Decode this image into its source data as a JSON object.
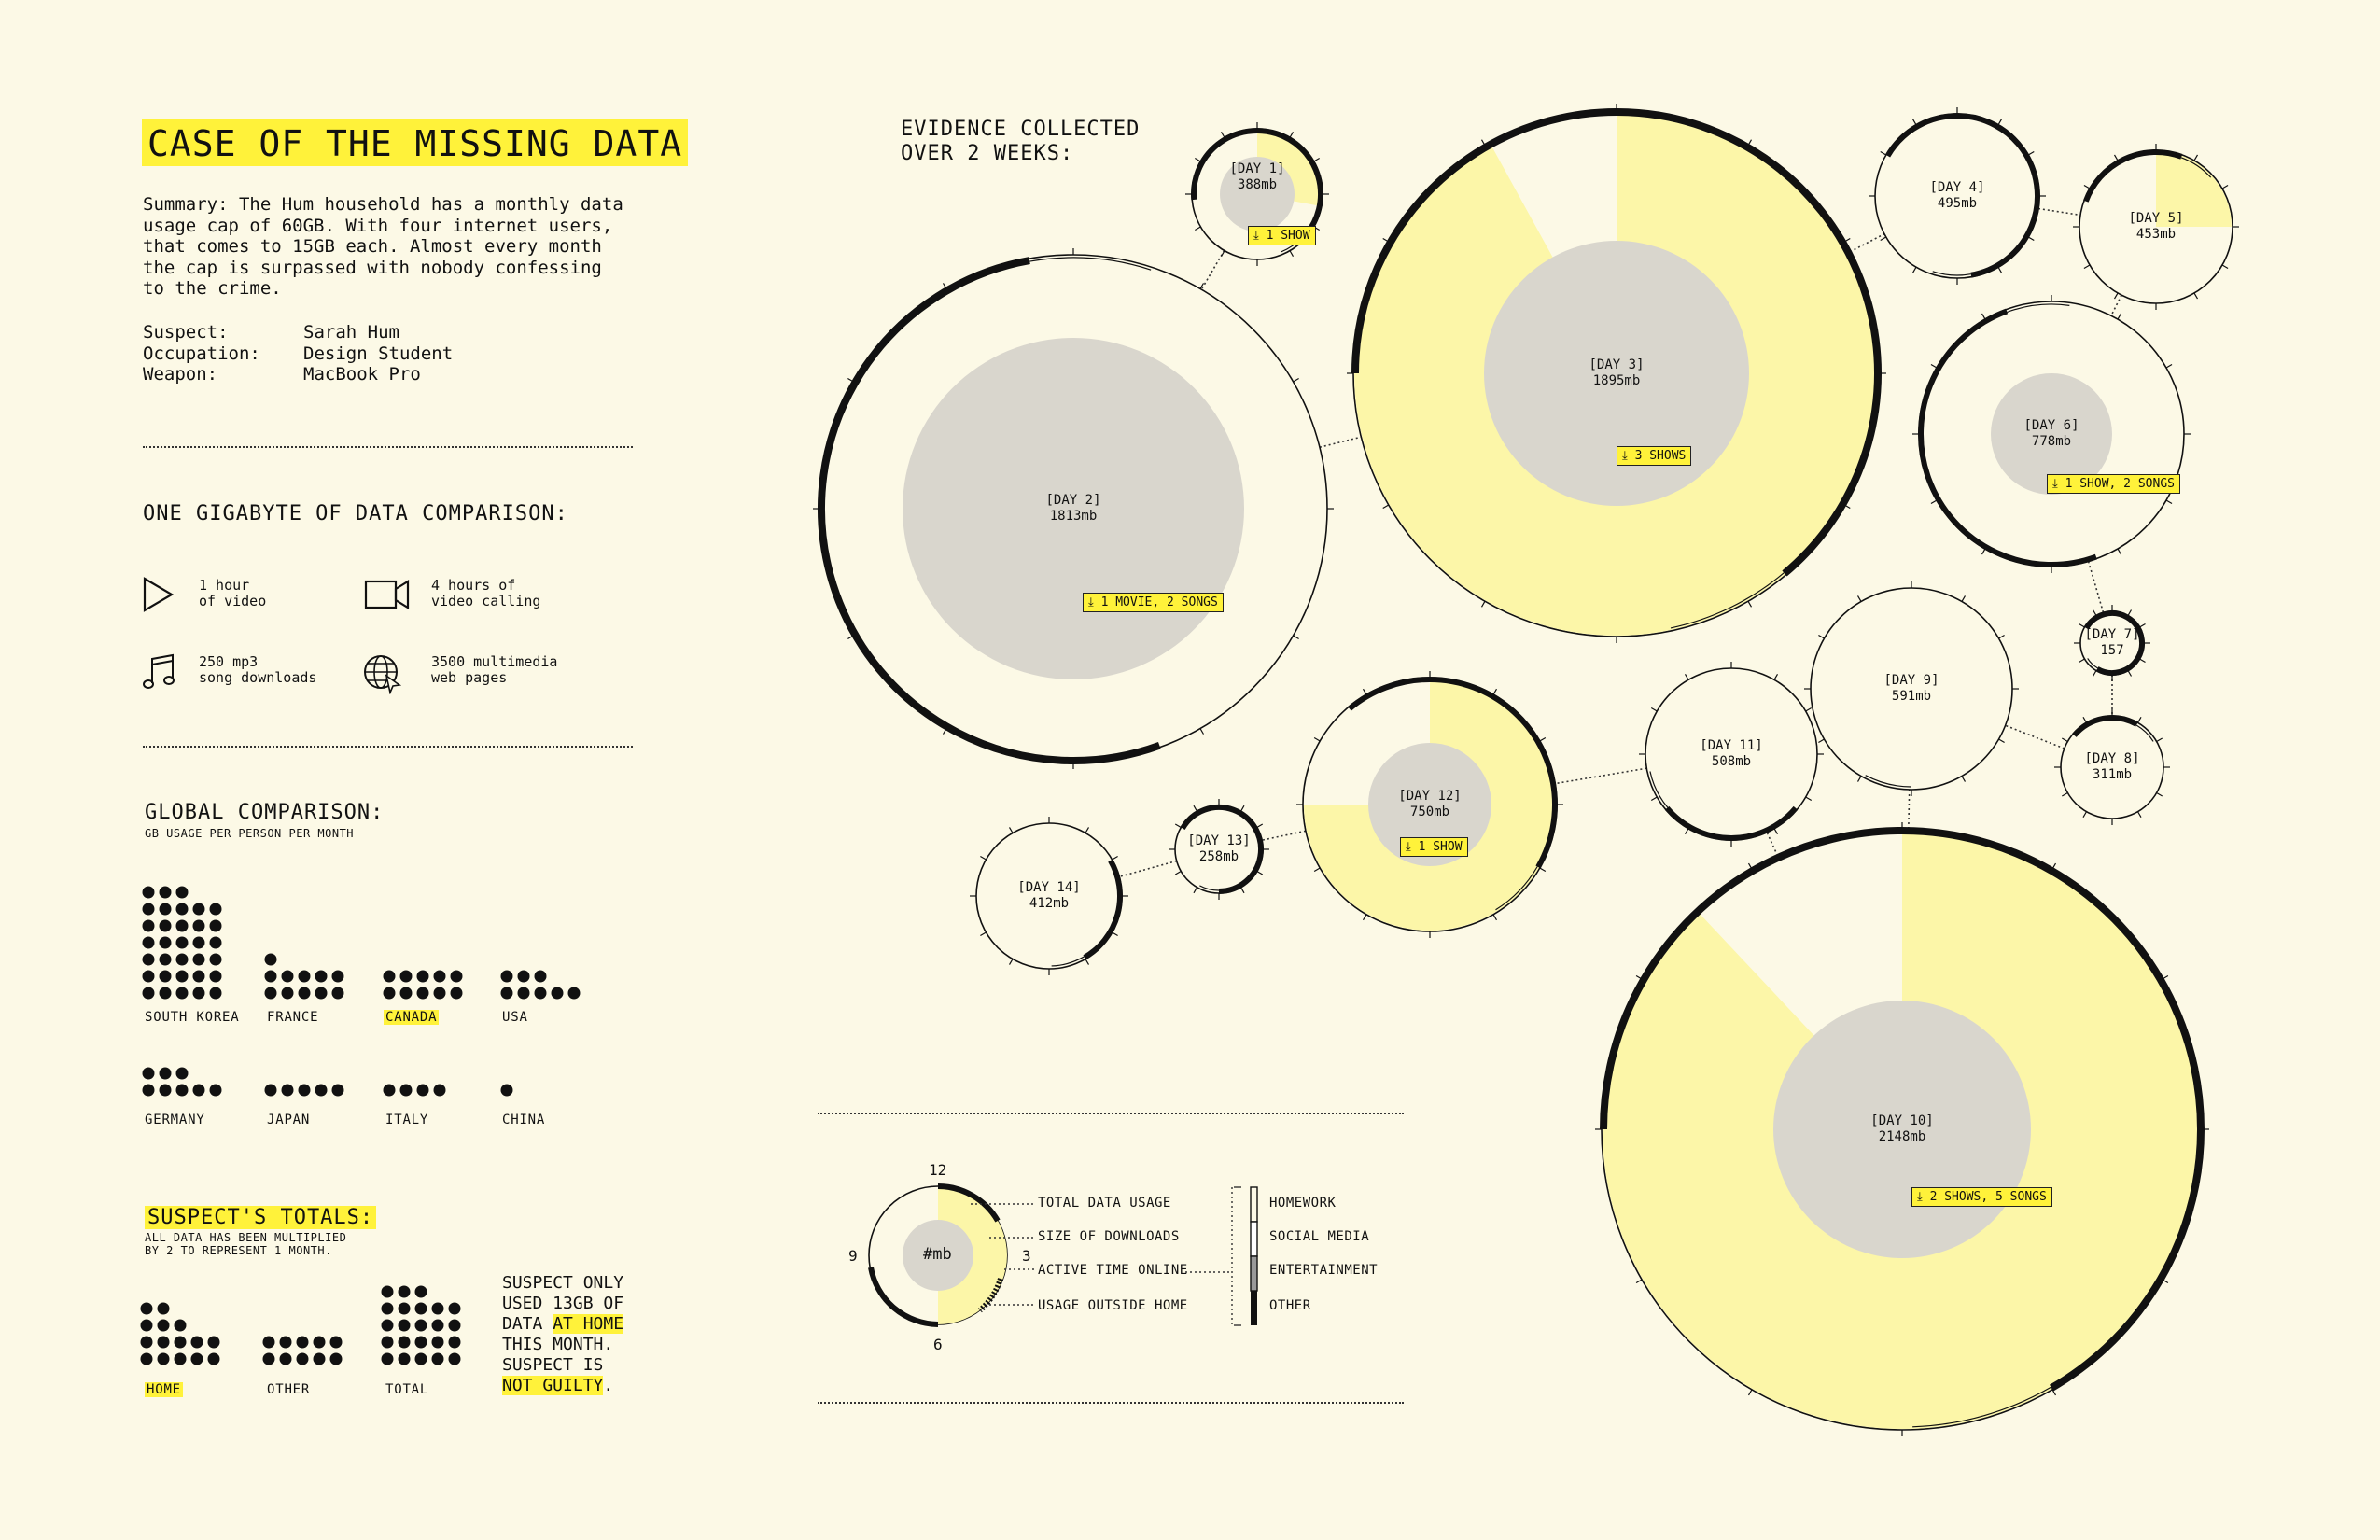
{
  "title": "CASE OF THE MISSING DATA",
  "summary": "Summary: The Hum household has a monthly data\nusage cap of 60GB. With four internet users,\nthat comes to 15GB each. Almost every month\nthe cap is surpassed with nobody confessing\nto the crime.",
  "facts": [
    {
      "key": "Suspect:",
      "value": "Sarah Hum"
    },
    {
      "key": "Occupation:",
      "value": "Design Student"
    },
    {
      "key": "Weapon:",
      "value": "MacBook Pro"
    }
  ],
  "comparison": {
    "heading": "ONE GIGABYTE OF DATA COMPARISON:",
    "items": [
      {
        "icon": "play-icon",
        "line1": "1 hour",
        "line2": "of video"
      },
      {
        "icon": "video-camera-icon",
        "line1": "4 hours of",
        "line2": "video calling"
      },
      {
        "icon": "music-note-icon",
        "line1": "250 mp3",
        "line2": "song downloads"
      },
      {
        "icon": "globe-icon",
        "line1": "3500 multimedia",
        "line2": "web pages"
      }
    ]
  },
  "global": {
    "heading": "GLOBAL COMPARISON:",
    "subheading": "GB USAGE PER PERSON PER MONTH",
    "countries": [
      {
        "name": "SOUTH KOREA",
        "dots": 33,
        "highlight": false
      },
      {
        "name": "FRANCE",
        "dots": 11,
        "highlight": false
      },
      {
        "name": "CANADA",
        "dots": 10,
        "highlight": true
      },
      {
        "name": "USA",
        "dots": 8,
        "highlight": false
      },
      {
        "name": "GERMANY",
        "dots": 8,
        "highlight": false
      },
      {
        "name": "JAPAN",
        "dots": 5,
        "highlight": false
      },
      {
        "name": "ITALY",
        "dots": 4,
        "highlight": false
      },
      {
        "name": "CHINA",
        "dots": 1,
        "highlight": false
      }
    ]
  },
  "totals": {
    "heading": "SUSPECT'S TOTALS:",
    "note": "ALL DATA HAS BEEN MULTIPLIED\nBY 2 TO REPRESENT 1 MONTH.",
    "groups": [
      {
        "name": "HOME",
        "highlight": true
      },
      {
        "name": "OTHER",
        "highlight": false
      },
      {
        "name": "TOTAL",
        "highlight": false
      }
    ],
    "verdict": {
      "l1": "SUSPECT ONLY",
      "l2": "USED 13GB OF",
      "l3a": "DATA ",
      "l3b": "AT HOME",
      "l4": "THIS MONTH.",
      "l5": "SUSPECT IS",
      "l6a": "NOT GUILTY",
      "l6b": "."
    }
  },
  "evidence": {
    "heading1": "EVIDENCE COLLECTED",
    "heading2": "OVER 2 WEEKS:"
  },
  "days": [
    {
      "label": "[DAY 1]",
      "mb": "388mb",
      "tag": "⤓ 1 SHOW"
    },
    {
      "label": "[DAY 2]",
      "mb": "1813mb",
      "tag": "⤓ 1 MOVIE, 2 SONGS"
    },
    {
      "label": "[DAY 3]",
      "mb": "1895mb",
      "tag": "⤓ 3 SHOWS"
    },
    {
      "label": "[DAY 4]",
      "mb": "495mb",
      "tag": ""
    },
    {
      "label": "[DAY 5]",
      "mb": "453mb",
      "tag": ""
    },
    {
      "label": "[DAY 6]",
      "mb": "778mb",
      "tag": "⤓ 1 SHOW, 2 SONGS"
    },
    {
      "label": "[DAY 7]",
      "mb": "157",
      "tag": ""
    },
    {
      "label": "[DAY 8]",
      "mb": "311mb",
      "tag": ""
    },
    {
      "label": "[DAY 9]",
      "mb": "591mb",
      "tag": ""
    },
    {
      "label": "[DAY 10]",
      "mb": "2148mb",
      "tag": "⤓ 2 SHOWS, 5 SONGS"
    },
    {
      "label": "[DAY 11]",
      "mb": "508mb",
      "tag": ""
    },
    {
      "label": "[DAY 12]",
      "mb": "750mb",
      "tag": "⤓ 1 SHOW"
    },
    {
      "label": "[DAY 13]",
      "mb": "258mb",
      "tag": ""
    },
    {
      "label": "[DAY 14]",
      "mb": "412mb",
      "tag": ""
    }
  ],
  "legend": {
    "center": "#mb",
    "clock": {
      "top": "12",
      "right": "3",
      "bottom": "6",
      "left": "9"
    },
    "keys": [
      "TOTAL DATA USAGE",
      "SIZE OF DOWNLOADS",
      "ACTIVE TIME ONLINE",
      "USAGE OUTSIDE HOME"
    ],
    "categories": [
      "HOMEWORK",
      "SOCIAL MEDIA",
      "ENTERTAINMENT",
      "OTHER"
    ]
  },
  "colors": {
    "background": "#fcf9e6",
    "highlight": "#fff23a",
    "fill": "#fcf6a8",
    "core": "#d9d6cd",
    "ink": "#111111"
  }
}
